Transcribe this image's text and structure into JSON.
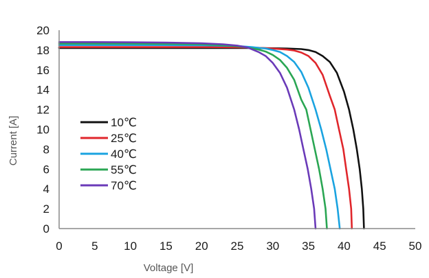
{
  "chart_data": {
    "type": "line",
    "title": "",
    "xlabel": "Voltage [V]",
    "ylabel": "Current [A]",
    "xlim": [
      0,
      50
    ],
    "ylim": [
      0,
      20
    ],
    "x_ticks": [
      "0",
      "5",
      "10",
      "15",
      "20",
      "25",
      "30",
      "35",
      "40",
      "45",
      "50"
    ],
    "y_ticks": [
      "0",
      "2",
      "4",
      "6",
      "8",
      "10",
      "12",
      "14",
      "16",
      "18",
      "20"
    ],
    "grid": false,
    "legend_position": "left",
    "series": [
      {
        "name": "10℃",
        "color": "#111111",
        "points": [
          [
            0,
            18.2
          ],
          [
            5,
            18.2
          ],
          [
            10,
            18.2
          ],
          [
            15,
            18.2
          ],
          [
            20,
            18.2
          ],
          [
            25,
            18.2
          ],
          [
            28,
            18.2
          ],
          [
            30,
            18.18
          ],
          [
            32,
            18.15
          ],
          [
            34,
            18.1
          ],
          [
            35,
            18.0
          ],
          [
            36,
            17.8
          ],
          [
            37,
            17.4
          ],
          [
            38,
            16.8
          ],
          [
            39,
            15.7
          ],
          [
            40,
            13.8
          ],
          [
            40.7,
            12.0
          ],
          [
            41.3,
            10.0
          ],
          [
            41.8,
            8.0
          ],
          [
            42.2,
            6.0
          ],
          [
            42.5,
            4.0
          ],
          [
            42.7,
            2.0
          ],
          [
            42.8,
            0
          ]
        ]
      },
      {
        "name": "25℃",
        "color": "#e0262b",
        "points": [
          [
            0,
            18.3
          ],
          [
            5,
            18.3
          ],
          [
            10,
            18.3
          ],
          [
            15,
            18.3
          ],
          [
            20,
            18.3
          ],
          [
            25,
            18.28
          ],
          [
            28,
            18.22
          ],
          [
            30,
            18.15
          ],
          [
            32,
            18.05
          ],
          [
            33,
            17.95
          ],
          [
            34,
            17.75
          ],
          [
            35,
            17.4
          ],
          [
            36,
            16.7
          ],
          [
            37,
            15.5
          ],
          [
            38,
            13.4
          ],
          [
            38.7,
            12.0
          ],
          [
            39.3,
            10.0
          ],
          [
            39.9,
            8.0
          ],
          [
            40.3,
            6.0
          ],
          [
            40.7,
            4.0
          ],
          [
            41.0,
            2.0
          ],
          [
            41.1,
            0
          ]
        ]
      },
      {
        "name": "40℃",
        "color": "#1aa3e0",
        "points": [
          [
            0,
            18.5
          ],
          [
            5,
            18.5
          ],
          [
            10,
            18.5
          ],
          [
            15,
            18.5
          ],
          [
            20,
            18.48
          ],
          [
            25,
            18.4
          ],
          [
            27,
            18.3
          ],
          [
            29,
            18.15
          ],
          [
            30,
            18.0
          ],
          [
            31,
            17.8
          ],
          [
            32,
            17.4
          ],
          [
            33,
            16.8
          ],
          [
            34,
            15.8
          ],
          [
            35,
            14.2
          ],
          [
            36,
            12.0
          ],
          [
            36.8,
            10.0
          ],
          [
            37.5,
            8.0
          ],
          [
            38.1,
            6.0
          ],
          [
            38.7,
            4.0
          ],
          [
            39.1,
            2.0
          ],
          [
            39.4,
            0
          ]
        ]
      },
      {
        "name": "55℃",
        "color": "#2aa653",
        "points": [
          [
            0,
            18.65
          ],
          [
            5,
            18.65
          ],
          [
            10,
            18.65
          ],
          [
            15,
            18.63
          ],
          [
            20,
            18.58
          ],
          [
            24,
            18.45
          ],
          [
            26,
            18.3
          ],
          [
            28,
            18.05
          ],
          [
            29,
            17.85
          ],
          [
            30,
            17.5
          ],
          [
            31,
            17.0
          ],
          [
            32,
            16.2
          ],
          [
            33,
            15.0
          ],
          [
            34,
            13.0
          ],
          [
            34.7,
            12.0
          ],
          [
            35.3,
            10.0
          ],
          [
            35.9,
            8.0
          ],
          [
            36.5,
            6.0
          ],
          [
            37.0,
            4.0
          ],
          [
            37.4,
            2.0
          ],
          [
            37.6,
            0
          ]
        ]
      },
      {
        "name": "70℃",
        "color": "#6a3ab8",
        "points": [
          [
            0,
            18.8
          ],
          [
            5,
            18.8
          ],
          [
            10,
            18.78
          ],
          [
            15,
            18.75
          ],
          [
            20,
            18.68
          ],
          [
            23,
            18.58
          ],
          [
            25,
            18.45
          ],
          [
            26.5,
            18.25
          ],
          [
            28,
            17.8
          ],
          [
            29,
            17.4
          ],
          [
            30,
            16.7
          ],
          [
            31,
            15.7
          ],
          [
            32,
            14.2
          ],
          [
            33,
            12.0
          ],
          [
            33.7,
            10.0
          ],
          [
            34.3,
            8.0
          ],
          [
            34.9,
            6.0
          ],
          [
            35.4,
            4.0
          ],
          [
            35.8,
            2.0
          ],
          [
            36.0,
            0
          ]
        ]
      }
    ]
  }
}
